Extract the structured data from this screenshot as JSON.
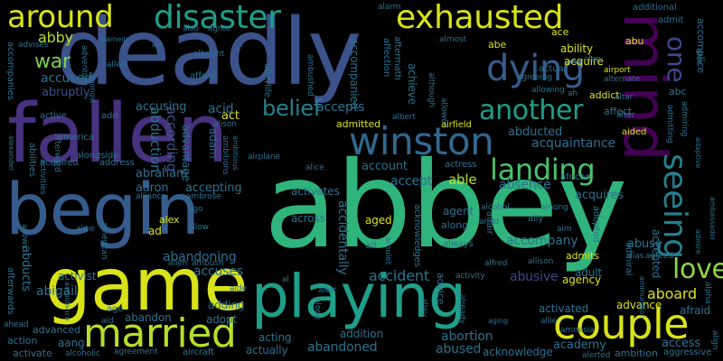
{
  "palette": {
    "background": "#000000",
    "yellow": "#d8e219",
    "lime": "#a0da39",
    "green": "#4ac16d",
    "teal": "#1fa187",
    "cyan": "#277f8e",
    "blue": "#365c8d",
    "indigo": "#46327e",
    "purple": "#440154"
  },
  "words": {
    "abbey": "abbey",
    "deadly": "deadly",
    "fallen": "fallen",
    "begin": "begin",
    "game": "game",
    "playing": "playing",
    "mind": "mind",
    "winston": "winston",
    "married": "married",
    "couple": "couple",
    "dying": "dying",
    "exhausted": "exhausted",
    "disaster": "disaster",
    "around": "around",
    "landing": "landing",
    "another": "another",
    "seeing": "seeing",
    "love": "love",
    "belief": "belief",
    "war": "war",
    "one": "one",
    "abby": "abby",
    "accused": "accused",
    "abruptly": "abruptly",
    "accusing": "accusing",
    "abigail": "abigail",
    "abducts": "abducts",
    "activist": "activist",
    "abandoning": "abandoning",
    "accuses": "accuses",
    "abraham": "abraham",
    "aaron": "aaron",
    "according": "according",
    "abduction": "abduction",
    "advantage": "advantage",
    "accepting": "accepting",
    "accepts": "accepts",
    "acid": "acid",
    "act": "act",
    "adam": "adam",
    "abducted": "abducted",
    "acquaintance": "acquaintance",
    "account": "account",
    "accept": "accept",
    "able": "able",
    "absence": "absence",
    "activates": "activates",
    "acquires": "acquires",
    "accompany": "accompany",
    "abuse": "abuse",
    "abusive": "abusive",
    "accident": "accident",
    "accidentally": "accidentally",
    "across": "across",
    "aged": "aged",
    "agent": "agent",
    "along": "along",
    "always": "always",
    "ali": "ali",
    "alex": "alex",
    "ad": "ad",
    "abandon": "abandon",
    "adopt": "adopt",
    "adding": "adding",
    "abandoned": "abandoned",
    "acting": "acting",
    "actually": "actually",
    "addition": "addition",
    "abortion": "abortion",
    "abused": "abused",
    "acknowledge": "acknowledge",
    "academy": "academy",
    "access": "access",
    "advance": "advance",
    "aboard": "aboard",
    "adult": "adult",
    "agency": "agency",
    "admits": "admits",
    "accepted": "accepted",
    "activated": "activated",
    "advanced": "advanced",
    "aang": "aang",
    "action": "action",
    "activate": "activate",
    "ability": "ability",
    "acquire": "acquire",
    "abe": "abe",
    "ace": "ace",
    "abu": "abu",
    "actual": "actual",
    "abc": "abc",
    "addict": "addict",
    "affect": "affect",
    "add": "add",
    "active": "active",
    "america": "america",
    "alongside": "alongside",
    "address": "address",
    "acquired": "acquired",
    "afterwards": "afterwards",
    "abilities": "abilities",
    "age": "age",
    "aid": "aid",
    "accompanies": "accompanies",
    "advises": "advises",
    "adventure": "adventure",
    "afford": "afford",
    "albright": "albright",
    "allen": "allen",
    "air": "air",
    "afterlife": "afterlife",
    "ambushed": "ambushed",
    "accompanied": "accompanied",
    "achieve": "achieve",
    "aftermath": "aftermath",
    "affection": "affection",
    "although": "although",
    "allowed": "allowed",
    "airfield": "airfield",
    "albert": "albert",
    "admitted": "admitted",
    "alison": "alison",
    "airplane": "airplane",
    "alice": "alice",
    "actress": "actress",
    "african": "african",
    "aided": "aided",
    "adopted": "adopted",
    "affair": "affair",
    "among": "among",
    "alcohol": "alcohol",
    "amid": "amid",
    "ally": "ally",
    "aim": "aim",
    "allison": "allison",
    "alfred": "alfred",
    "activity": "activity",
    "admiral": "admiral",
    "advice": "advice",
    "acknowledges": "acknowledges",
    "amulet": "amulet",
    "alley": "alley",
    "already": "already",
    "alone": "alone",
    "alert": "alert",
    "aide": "aide",
    "al": "al",
    "aging": "aging",
    "alien": "alien",
    "ambush": "ambush",
    "alive": "alive",
    "american": "american",
    "ago": "ago",
    "allow": "allow",
    "allows": "allows",
    "alliance": "alliance",
    "ambrose": "ambrose",
    "activities": "activities",
    "ambitions": "ambitions",
    "ambitious": "ambitious",
    "ambulance": "ambulance",
    "ambition": "ambition",
    "aggressive": "aggressive",
    "amnesia": "amnesia",
    "aircraft": "aircraft",
    "agreement": "agreement",
    "alcoholic": "alcoholic",
    "alerted": "alerted",
    "alpha": "alpha",
    "align": "align",
    "afraid": "afraid",
    "allie": "allie",
    "ah": "ah",
    "ammunition": "ammunition",
    "ambassador": "ambassador",
    "alias": "alias",
    "agreed": "agreed",
    "alamein": "alamein",
    "agree": "agree",
    "also": "also",
    "alarm": "alarm",
    "additional": "additional",
    "admit": "admit",
    "accomplice": "accomplice",
    "almost": "almost",
    "agreeing": "agreeing",
    "alan": "alan",
    "alternate": "alternate",
    "alec": "alec",
    "airport": "airport",
    "allowing": "allowing",
    "admitting": "admitting",
    "admiring": "admiring",
    "adaptive": "adaptive",
    "altar": "altar",
    "alexander": "alexander",
    "ahead": "ahead",
    "amongst": "amongst",
    "alter": "alter",
    "afterward": "afterward",
    "admire": "admire"
  }
}
